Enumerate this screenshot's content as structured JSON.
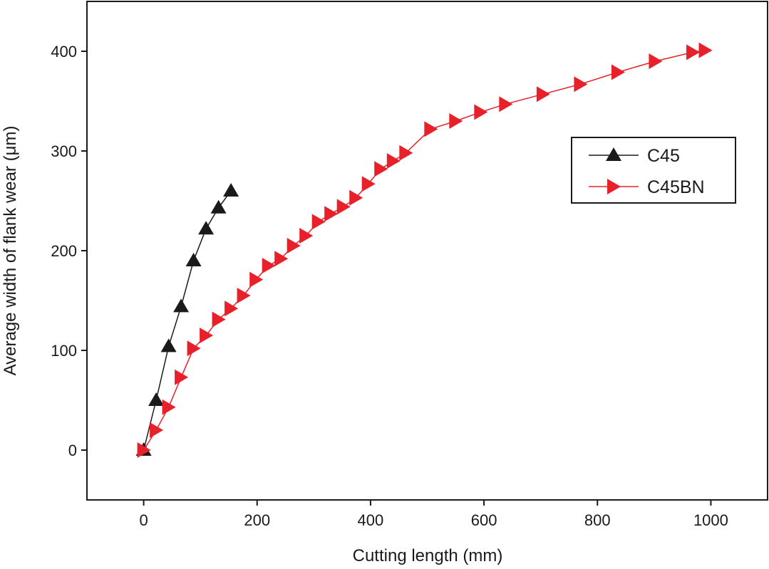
{
  "chart_data": {
    "type": "line",
    "xlabel": "Cutting length (mm)",
    "ylabel": "Average width of flank wear (μm)",
    "xlim": [
      -100,
      1100
    ],
    "ylim": [
      -50,
      450
    ],
    "xticks": [
      0,
      200,
      400,
      600,
      800,
      1000
    ],
    "yticks": [
      0,
      100,
      200,
      300,
      400
    ],
    "legend_position": "top-right",
    "grid": false,
    "series": [
      {
        "name": "C45",
        "color": "#1a1a1a",
        "marker": "triangle-up",
        "x": [
          0,
          22,
          44,
          66,
          88,
          110,
          132,
          154
        ],
        "y": [
          0,
          50,
          104,
          144,
          190,
          222,
          243,
          260
        ]
      },
      {
        "name": "C45BN",
        "color": "#e8202a",
        "marker": "triangle-right",
        "x": [
          0,
          22,
          44,
          66,
          88,
          110,
          132,
          154,
          176,
          198,
          220,
          242,
          264,
          286,
          308,
          330,
          352,
          374,
          396,
          418,
          440,
          462,
          506,
          550,
          594,
          638,
          704,
          770,
          836,
          902,
          968,
          990
        ],
        "y": [
          0,
          20,
          43,
          73,
          102,
          115,
          131,
          142,
          155,
          171,
          185,
          192,
          205,
          215,
          229,
          237,
          244,
          253,
          267,
          282,
          290,
          298,
          322,
          330,
          339,
          347,
          357,
          367,
          379,
          390,
          399,
          401
        ]
      }
    ]
  }
}
